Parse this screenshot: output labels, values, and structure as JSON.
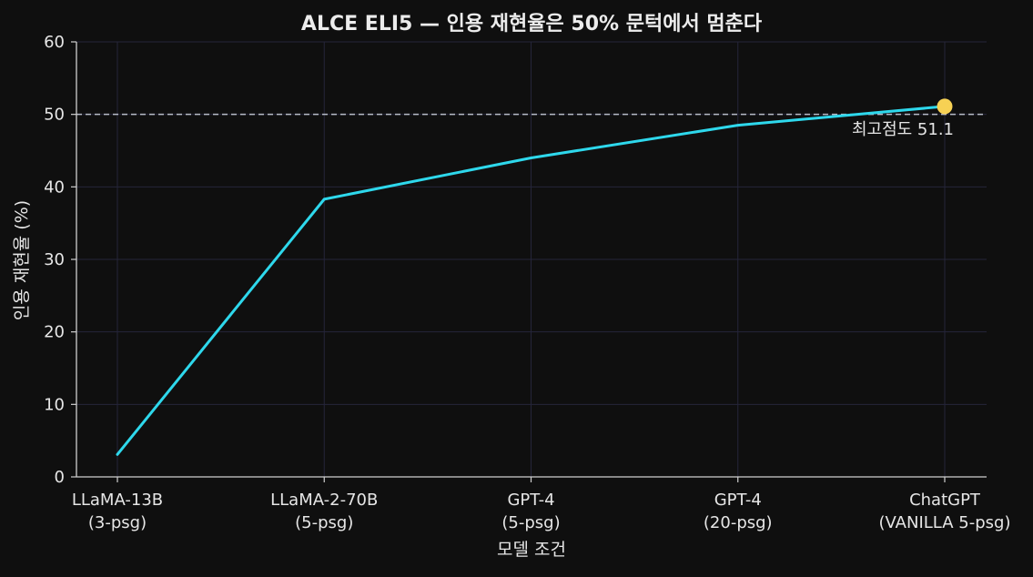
{
  "chart_data": {
    "type": "line",
    "title": "ALCE ELI5 — 인용 재현율은 50% 문턱에서 멈춘다",
    "xlabel": "모델 조건",
    "ylabel": "인용 재현율 (%)",
    "ylim": [
      0,
      60
    ],
    "yticks": [
      0,
      10,
      20,
      30,
      40,
      50,
      60
    ],
    "grid": true,
    "categories": [
      [
        "LLaMA-13B",
        "(3-psg)"
      ],
      [
        "LLaMA-2-70B",
        "(5-psg)"
      ],
      [
        "GPT-4",
        "(5-psg)"
      ],
      [
        "GPT-4",
        "(20-psg)"
      ],
      [
        "ChatGPT",
        "(VANILLA 5-psg)"
      ]
    ],
    "series": [
      {
        "values": [
          3.1,
          38.3,
          44.0,
          48.5,
          51.1
        ]
      }
    ],
    "reference_line": {
      "y": 50,
      "style": "dashed"
    },
    "highlight": {
      "index": 4,
      "label": "최고점도 51.1"
    },
    "colors": {
      "background": "#0f0f0f",
      "line": "#2ed8ec",
      "highlight": "#f7d154",
      "text": "#e6e6e6",
      "grid": "#25253a",
      "axis": "#cfcfcf",
      "reference": "#b8bcc8"
    }
  }
}
